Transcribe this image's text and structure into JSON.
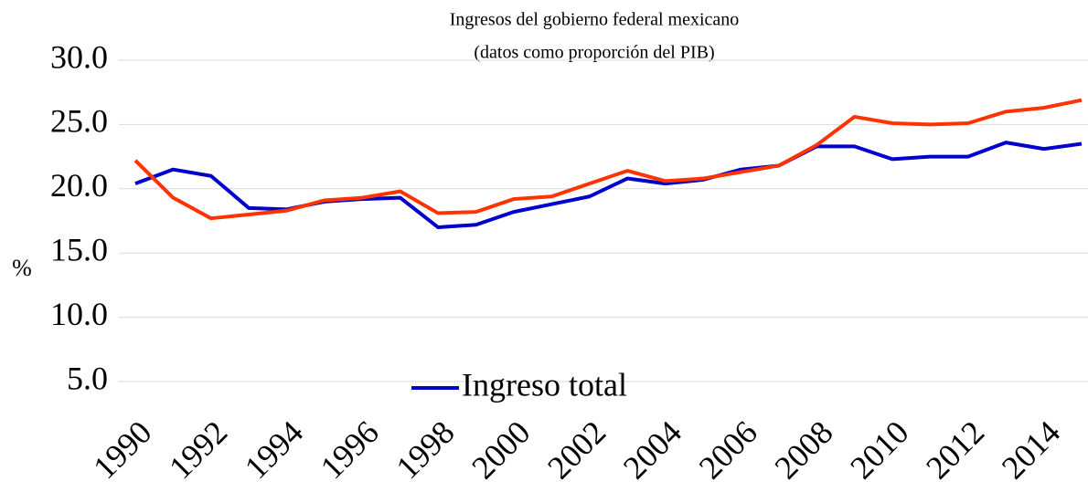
{
  "chart_data": {
    "type": "line",
    "title": "Ingresos del gobierno federal mexicano",
    "subtitle": "(datos como proporción del PIB)",
    "y_label": "%",
    "x": [
      1990,
      1991,
      1992,
      1993,
      1994,
      1995,
      1996,
      1997,
      1998,
      1999,
      2000,
      2001,
      2002,
      2003,
      2004,
      2005,
      2006,
      2007,
      2008,
      2009,
      2010,
      2011,
      2012,
      2013,
      2014,
      2015
    ],
    "xlim": [
      1990,
      2015
    ],
    "xticks": [
      1990,
      1992,
      1994,
      1996,
      1998,
      2000,
      2002,
      2004,
      2006,
      2008,
      2010,
      2012,
      2014
    ],
    "ylim": [
      5,
      30
    ],
    "yticks": [
      {
        "value": 5,
        "label": "5.0"
      },
      {
        "value": 10,
        "label": "10.0"
      },
      {
        "value": 15,
        "label": "15.0"
      },
      {
        "value": 20,
        "label": "20.0"
      },
      {
        "value": 25,
        "label": "25.0"
      },
      {
        "value": 30,
        "label": "30.0"
      }
    ],
    "grid": true,
    "series": [
      {
        "name": "Ingreso total",
        "color": "#0000cc",
        "values": [
          20.4,
          21.5,
          21.0,
          18.5,
          18.4,
          19.0,
          19.2,
          19.3,
          17.0,
          17.2,
          18.2,
          18.8,
          19.4,
          20.8,
          20.4,
          20.7,
          21.5,
          21.8,
          23.3,
          23.3,
          22.3,
          22.5,
          22.5,
          23.6,
          23.1,
          23.5
        ]
      },
      {
        "color": "#ff3300",
        "values": [
          22.2,
          19.3,
          17.7,
          18.0,
          18.3,
          19.1,
          19.3,
          19.8,
          18.1,
          18.2,
          19.2,
          19.4,
          20.4,
          21.4,
          20.6,
          20.8,
          21.3,
          21.8,
          23.4,
          25.6,
          25.1,
          25.0,
          25.1,
          26.0,
          26.3,
          26.9
        ]
      }
    ]
  }
}
